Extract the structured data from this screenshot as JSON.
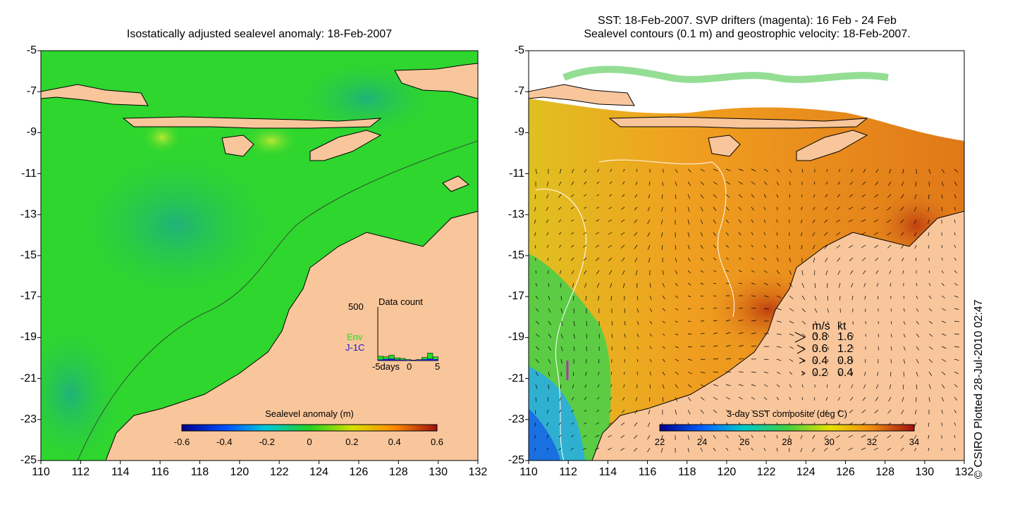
{
  "left_panel": {
    "title": "Isostatically adjusted sealevel anomaly: 18-Feb-2007",
    "yticks": [
      "-5",
      "-7",
      "-9",
      "-11",
      "-13",
      "-15",
      "-17",
      "-19",
      "-21",
      "-23",
      "-25"
    ],
    "xticks": [
      "110",
      "112",
      "114",
      "116",
      "118",
      "120",
      "122",
      "124",
      "126",
      "128",
      "130",
      "132"
    ],
    "colorbar": {
      "label": "Sealevel anomaly (m)",
      "ticks": [
        "-0.6",
        "-0.4",
        "-0.2",
        "0",
        "0.2",
        "0.4",
        "0.6"
      ]
    },
    "inset": {
      "title": "Data count",
      "ymax": "500",
      "legend": [
        {
          "label": "Env",
          "color": "#22dd22"
        },
        {
          "label": "J-1C",
          "color": "#1a1acc"
        }
      ],
      "xlabel_left": "-5days",
      "xlabel_mid": "0",
      "xlabel_right": "5",
      "bars_env": [
        40,
        35,
        50,
        25,
        20,
        10,
        5,
        10,
        30,
        70,
        35
      ],
      "bars_j1c": [
        10,
        15,
        18,
        10,
        8,
        5,
        3,
        6,
        12,
        18,
        12
      ]
    }
  },
  "right_panel": {
    "title_line1": "SST: 18-Feb-2007. SVP drifters (magenta): 16 Feb - 24 Feb",
    "title_line2": "Sealevel contours (0.1 m) and geostrophic velocity: 18-Feb-2007.",
    "yticks": [
      "-5",
      "-7",
      "-9",
      "-11",
      "-13",
      "-15",
      "-17",
      "-19",
      "-21",
      "-23",
      "-25"
    ],
    "xticks": [
      "110",
      "112",
      "114",
      "116",
      "118",
      "120",
      "122",
      "124",
      "126",
      "128",
      "130",
      "132"
    ],
    "colorbar": {
      "label": "3-day SST composite (deg C)",
      "ticks": [
        "22",
        "24",
        "26",
        "28",
        "30",
        "32",
        "34"
      ]
    },
    "speed_legend": {
      "header_ms": "m/s",
      "header_kt": "kt",
      "rows": [
        {
          "ms": "0.8",
          "kt": "1.6"
        },
        {
          "ms": "0.6",
          "kt": "1.2"
        },
        {
          "ms": "0.4",
          "kt": "0.8"
        },
        {
          "ms": "0.2",
          "kt": "0.4"
        }
      ]
    }
  },
  "credit": "© CSIRO Plotted 28-Jul-2010 02:47",
  "colors": {
    "land": "#f9c69c",
    "ocean_green": "#2ed62e",
    "ocean_teal": "#22bb66",
    "sst_orange": "#e8901c",
    "sst_dark": "#c86010",
    "cloud": "#ffffff"
  }
}
